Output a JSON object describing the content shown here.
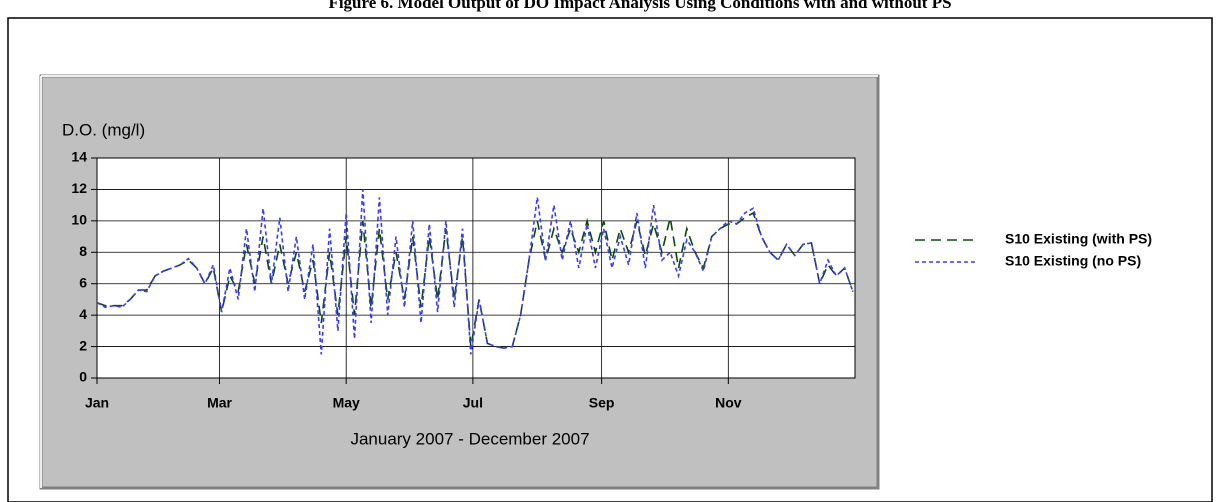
{
  "chart_data": {
    "type": "line",
    "figure_title": "Figure 6. Model Output of DO Impact Analysis Using Conditions with and without PS",
    "title": "D.O. (mg/l)",
    "x_label": "January 2007 - December 2007",
    "x": [
      0,
      4,
      8,
      12,
      16,
      20,
      24,
      28,
      32,
      36,
      40,
      44,
      48,
      52,
      56,
      60,
      64,
      68,
      72,
      76,
      80,
      84,
      88,
      92,
      96,
      100,
      104,
      108,
      112,
      116,
      120,
      124,
      128,
      132,
      136,
      140,
      144,
      148,
      152,
      156,
      160,
      164,
      168,
      172,
      176,
      180,
      184,
      188,
      192,
      196,
      200,
      204,
      208,
      212,
      216,
      220,
      224,
      228,
      232,
      236,
      240,
      244,
      248,
      252,
      256,
      260,
      264,
      268,
      272,
      276,
      280,
      284,
      288,
      292,
      296,
      300,
      304,
      308,
      312,
      316,
      320,
      324,
      328,
      332,
      336,
      340,
      344,
      348,
      352,
      356,
      360,
      364
    ],
    "xlim": [
      0,
      365
    ],
    "xticks": [
      {
        "value": 0,
        "label": "Jan"
      },
      {
        "value": 59,
        "label": "Mar"
      },
      {
        "value": 120,
        "label": "May"
      },
      {
        "value": 181,
        "label": "Jul"
      },
      {
        "value": 243,
        "label": "Sep"
      },
      {
        "value": 304,
        "label": "Nov"
      }
    ],
    "ylim": [
      0,
      14
    ],
    "yticks": [
      0,
      2,
      4,
      6,
      8,
      10,
      12,
      14
    ],
    "grid": true,
    "series": [
      {
        "name": "S10 Existing (with PS)",
        "color": "#0b4a0b",
        "dash": "10 6",
        "values": [
          4.8,
          4.6,
          4.6,
          4.6,
          5.0,
          5.6,
          5.6,
          6.5,
          6.8,
          7.0,
          7.2,
          7.5,
          7.0,
          6.0,
          7.0,
          4.2,
          6.5,
          5.5,
          8.5,
          6.0,
          9.0,
          6.0,
          8.5,
          6.0,
          8.0,
          5.5,
          7.5,
          3.5,
          8.0,
          4.0,
          9.0,
          4.0,
          10.0,
          4.5,
          9.5,
          5.0,
          8.0,
          5.0,
          9.0,
          4.5,
          9.0,
          5.0,
          9.5,
          5.0,
          9.0,
          2.0,
          5.0,
          2.2,
          2.0,
          1.9,
          2.0,
          4.0,
          7.5,
          10.0,
          7.5,
          9.5,
          8.0,
          9.5,
          8.0,
          10.0,
          8.0,
          10.0,
          7.5,
          9.5,
          8.0,
          10.0,
          7.8,
          9.8,
          8.0,
          10.2,
          7.0,
          9.5,
          8.0,
          7.0,
          9.0,
          9.5,
          9.8,
          9.8,
          10.2,
          10.5,
          9.0,
          8.0,
          7.5,
          8.5,
          7.8,
          8.5,
          8.6,
          6.0,
          7.2,
          6.5,
          7.0,
          5.5
        ]
      },
      {
        "name": "S10 Existing (no PS)",
        "color": "#3a3aff",
        "dash": "4 3",
        "values": [
          4.8,
          4.5,
          4.6,
          4.5,
          5.0,
          5.6,
          5.5,
          6.5,
          6.8,
          7.0,
          7.2,
          7.6,
          7.0,
          6.0,
          7.2,
          4.2,
          7.0,
          5.0,
          9.5,
          5.5,
          10.8,
          6.0,
          10.2,
          5.5,
          9.0,
          5.0,
          8.5,
          1.5,
          9.5,
          3.0,
          10.5,
          2.5,
          12.0,
          3.5,
          11.5,
          4.0,
          9.0,
          4.5,
          10.0,
          3.5,
          9.8,
          4.2,
          10.0,
          4.5,
          9.5,
          1.5,
          5.0,
          2.2,
          2.0,
          1.9,
          2.0,
          4.0,
          7.5,
          11.5,
          7.5,
          11.0,
          7.5,
          10.0,
          7.0,
          9.8,
          7.0,
          9.5,
          7.0,
          9.0,
          7.2,
          10.5,
          7.0,
          11.0,
          7.5,
          8.0,
          6.5,
          8.8,
          8.0,
          6.8,
          9.0,
          9.5,
          10.0,
          9.8,
          10.5,
          10.8,
          9.0,
          8.0,
          7.5,
          8.5,
          7.8,
          8.5,
          8.6,
          6.0,
          7.5,
          6.5,
          7.0,
          5.5
        ]
      }
    ]
  }
}
